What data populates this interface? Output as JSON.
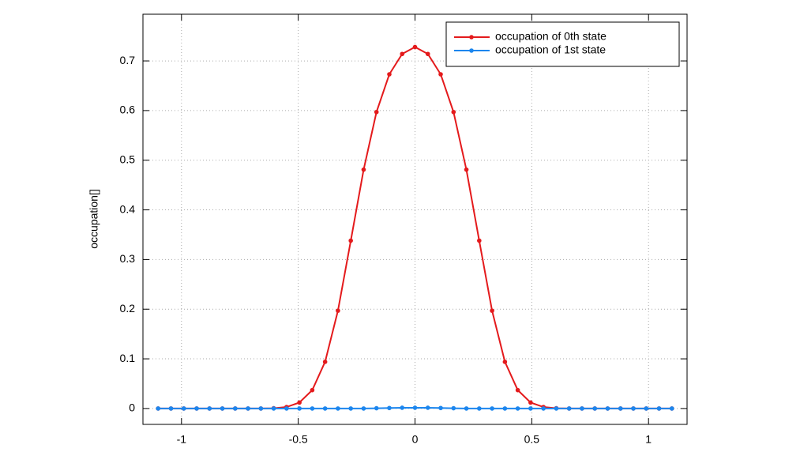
{
  "chart_data": {
    "type": "line",
    "ylabel": "occupation[]",
    "x": [
      -1.1,
      -1.045,
      -0.99,
      -0.935,
      -0.88,
      -0.825,
      -0.77,
      -0.715,
      -0.66,
      -0.605,
      -0.55,
      -0.495,
      -0.44,
      -0.385,
      -0.33,
      -0.275,
      -0.22,
      -0.165,
      -0.11,
      -0.055,
      0,
      0.055,
      0.11,
      0.165,
      0.22,
      0.275,
      0.33,
      0.385,
      0.44,
      0.495,
      0.55,
      0.605,
      0.66,
      0.715,
      0.77,
      0.825,
      0.88,
      0.935,
      0.99,
      1.045,
      1.1
    ],
    "series": [
      {
        "name": "occupation of 0th state",
        "color": "#e41a1c",
        "values": [
          0,
          0,
          0,
          0,
          0,
          0,
          0,
          0,
          0,
          0.0005,
          0.003,
          0.012,
          0.037,
          0.094,
          0.197,
          0.338,
          0.481,
          0.597,
          0.673,
          0.714,
          0.728,
          0.714,
          0.673,
          0.597,
          0.481,
          0.338,
          0.197,
          0.094,
          0.037,
          0.012,
          0.003,
          0.0005,
          0,
          0,
          0,
          0,
          0,
          0,
          0,
          0,
          0
        ]
      },
      {
        "name": "occupation of 1st state",
        "color": "#1c86ee",
        "values": [
          0,
          0,
          0,
          0,
          0,
          0,
          0,
          0,
          0,
          0,
          0,
          0,
          0,
          0,
          0,
          0,
          0,
          0.0005,
          0.001,
          0.0015,
          0.0015,
          0.0015,
          0.001,
          0.0005,
          0,
          0,
          0,
          0,
          0,
          0,
          0,
          0,
          0,
          0,
          0,
          0,
          0,
          0,
          0,
          0,
          0
        ]
      }
    ],
    "xlim": [
      -1.165,
      1.165
    ],
    "ylim": [
      -0.032,
      0.794
    ],
    "xticks": [
      -1,
      -0.5,
      0,
      0.5,
      1
    ],
    "yticks": [
      0,
      0.1,
      0.2,
      0.3,
      0.4,
      0.5,
      0.6,
      0.7
    ],
    "grid": true,
    "legend": "top-right"
  }
}
